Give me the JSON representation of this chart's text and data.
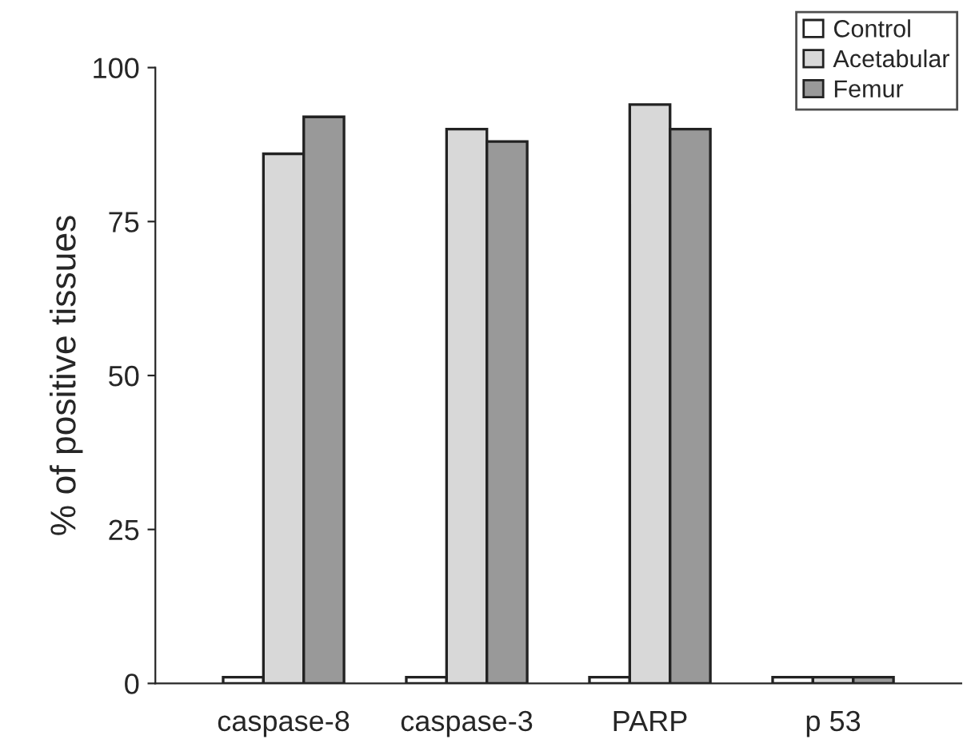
{
  "chart_data": {
    "type": "bar",
    "ylabel": "% of positive tissues",
    "categories": [
      "caspase-8",
      "caspase-3",
      "PARP",
      "p 53"
    ],
    "series": [
      {
        "name": "Control",
        "color": "#ffffff",
        "values": [
          1,
          1,
          1,
          1
        ]
      },
      {
        "name": "Acetabular",
        "color": "#d8d8d8",
        "values": [
          86,
          90,
          94,
          1
        ]
      },
      {
        "name": "Femur",
        "color": "#999999",
        "values": [
          92,
          88,
          90,
          1
        ]
      }
    ],
    "ylim": [
      0,
      100
    ],
    "yticks": [
      0,
      25,
      50,
      75,
      100
    ],
    "grid": false,
    "legend": "top right"
  }
}
